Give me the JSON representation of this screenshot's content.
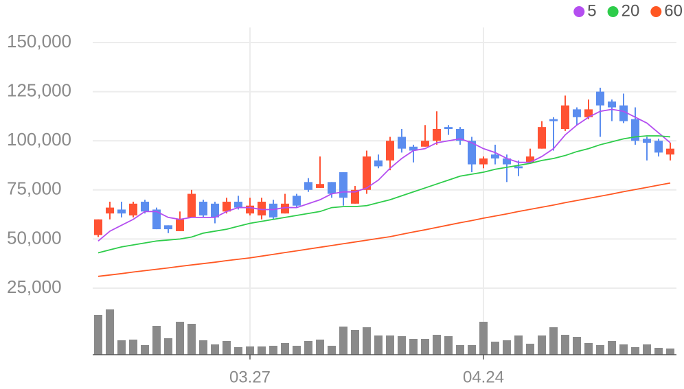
{
  "chart_data": {
    "type": "candlestick",
    "categories": [
      null,
      null,
      null,
      null,
      null,
      null,
      null,
      null,
      null,
      null,
      null,
      null,
      null,
      "03.27",
      null,
      null,
      null,
      null,
      null,
      null,
      null,
      null,
      null,
      null,
      null,
      null,
      null,
      null,
      null,
      null,
      null,
      null,
      null,
      "04.24",
      null,
      null,
      null,
      null,
      null,
      null,
      null,
      null,
      null,
      null,
      null,
      null,
      null,
      null,
      null,
      null
    ],
    "open": [
      52000,
      63000,
      65000,
      62000,
      69000,
      65000,
      57000,
      54000,
      61000,
      69000,
      68000,
      64000,
      69000,
      63000,
      62000,
      68000,
      63000,
      72000,
      79000,
      76000,
      79000,
      84000,
      68000,
      75000,
      90000,
      90000,
      102000,
      97000,
      97000,
      100000,
      107000,
      106000,
      100000,
      88000,
      93000,
      91000,
      87000,
      89000,
      96000,
      111000,
      106000,
      116000,
      112000,
      125000,
      120000,
      118000,
      111000,
      101000,
      100000,
      93000
    ],
    "high": [
      60000,
      69000,
      69000,
      69000,
      70000,
      66000,
      57000,
      64000,
      75000,
      70000,
      69000,
      71000,
      72000,
      71000,
      71000,
      70000,
      73000,
      73000,
      81000,
      92000,
      79000,
      84000,
      77000,
      95000,
      93000,
      102000,
      106000,
      98000,
      108000,
      115000,
      108000,
      107000,
      102000,
      92000,
      98000,
      93000,
      90000,
      96000,
      110000,
      112000,
      123000,
      117000,
      121000,
      127000,
      121000,
      124000,
      117000,
      102000,
      101000,
      99000
    ],
    "low": [
      51000,
      60000,
      61000,
      61000,
      63000,
      55000,
      53000,
      54000,
      61000,
      61000,
      58000,
      63000,
      65000,
      62000,
      60000,
      60000,
      63000,
      66000,
      74000,
      76000,
      71000,
      67000,
      68000,
      73000,
      86000,
      85000,
      94000,
      89000,
      97000,
      98000,
      103000,
      98000,
      84000,
      86000,
      88000,
      79000,
      82000,
      89000,
      96000,
      95000,
      105000,
      108000,
      111000,
      102000,
      110000,
      109000,
      98000,
      90000,
      92000,
      90000
    ],
    "close": [
      60000,
      66000,
      63000,
      68000,
      64000,
      55000,
      55000,
      60000,
      73000,
      62000,
      61000,
      69000,
      66000,
      67000,
      69000,
      61000,
      68000,
      67000,
      75000,
      78000,
      73000,
      71000,
      75000,
      92000,
      87000,
      100000,
      96000,
      95000,
      100000,
      106000,
      106000,
      100000,
      88000,
      91000,
      91000,
      88000,
      86000,
      92000,
      107000,
      110000,
      118000,
      112000,
      116000,
      118000,
      117000,
      110000,
      100000,
      99000,
      94000,
      96000
    ],
    "up_color": "#ff5233",
    "down_color": "#5b8def",
    "series": [
      {
        "name": "5",
        "color": "#b44ef0",
        "values": [
          49000,
          54000,
          57000,
          60000,
          64000,
          64000,
          61000,
          60000,
          61000,
          61000,
          61000,
          64000,
          66000,
          66000,
          65000,
          65000,
          66000,
          66000,
          68000,
          70000,
          73000,
          74000,
          74000,
          76000,
          80000,
          86000,
          91000,
          95000,
          96000,
          99000,
          100000,
          101000,
          99000,
          96000,
          94000,
          91000,
          89000,
          89000,
          92000,
          96000,
          103000,
          108000,
          112000,
          115000,
          116000,
          115000,
          112000,
          109000,
          104000,
          99000
        ]
      },
      {
        "name": "20",
        "color": "#2dcc4a",
        "values": [
          43000,
          44500,
          46000,
          47000,
          48000,
          49000,
          49500,
          50000,
          51000,
          53000,
          54000,
          55000,
          56500,
          58000,
          59000,
          60000,
          61000,
          62000,
          63000,
          64000,
          66000,
          66500,
          66500,
          67000,
          68500,
          70000,
          72000,
          74000,
          76000,
          78000,
          80000,
          82000,
          83000,
          84000,
          85500,
          86500,
          87500,
          88500,
          90000,
          91000,
          92500,
          94500,
          96000,
          98000,
          99500,
          101000,
          102000,
          102500,
          102500,
          102000
        ]
      },
      {
        "name": "60",
        "color": "#ff5722",
        "values": [
          31000,
          31700,
          32400,
          33200,
          33900,
          34600,
          35300,
          36100,
          36800,
          37500,
          38200,
          39000,
          39700,
          40400,
          41300,
          42200,
          43100,
          44000,
          44900,
          45800,
          46700,
          47600,
          48500,
          49400,
          50300,
          51200,
          52400,
          53600,
          54700,
          55900,
          57100,
          58300,
          59400,
          60600,
          61700,
          62800,
          64000,
          65100,
          66200,
          67300,
          68500,
          69600,
          70700,
          71800,
          72900,
          74100,
          75200,
          76300,
          77400,
          78500
        ]
      }
    ],
    "volume": {
      "color": "#8a8a8a",
      "ylim": [
        0,
        70
      ],
      "values": [
        58,
        66,
        21,
        22,
        14,
        42,
        24,
        48,
        45,
        21,
        15,
        20,
        11,
        12,
        12,
        13,
        17,
        13,
        20,
        22,
        13,
        41,
        36,
        40,
        28,
        28,
        27,
        23,
        23,
        29,
        27,
        14,
        14,
        48,
        19,
        21,
        28,
        16,
        28,
        40,
        29,
        26,
        17,
        14,
        20,
        15,
        11,
        15,
        10,
        9
      ]
    },
    "ylim": [
      15000,
      155000
    ],
    "yticks": [
      {
        "value": 25000,
        "label": "25,000"
      },
      {
        "value": 50000,
        "label": "50,000"
      },
      {
        "value": 75000,
        "label": "75,000"
      },
      {
        "value": 100000,
        "label": "100,000"
      },
      {
        "value": 125000,
        "label": "125,000"
      },
      {
        "value": 150000,
        "label": "150,000"
      }
    ],
    "grid": true
  }
}
